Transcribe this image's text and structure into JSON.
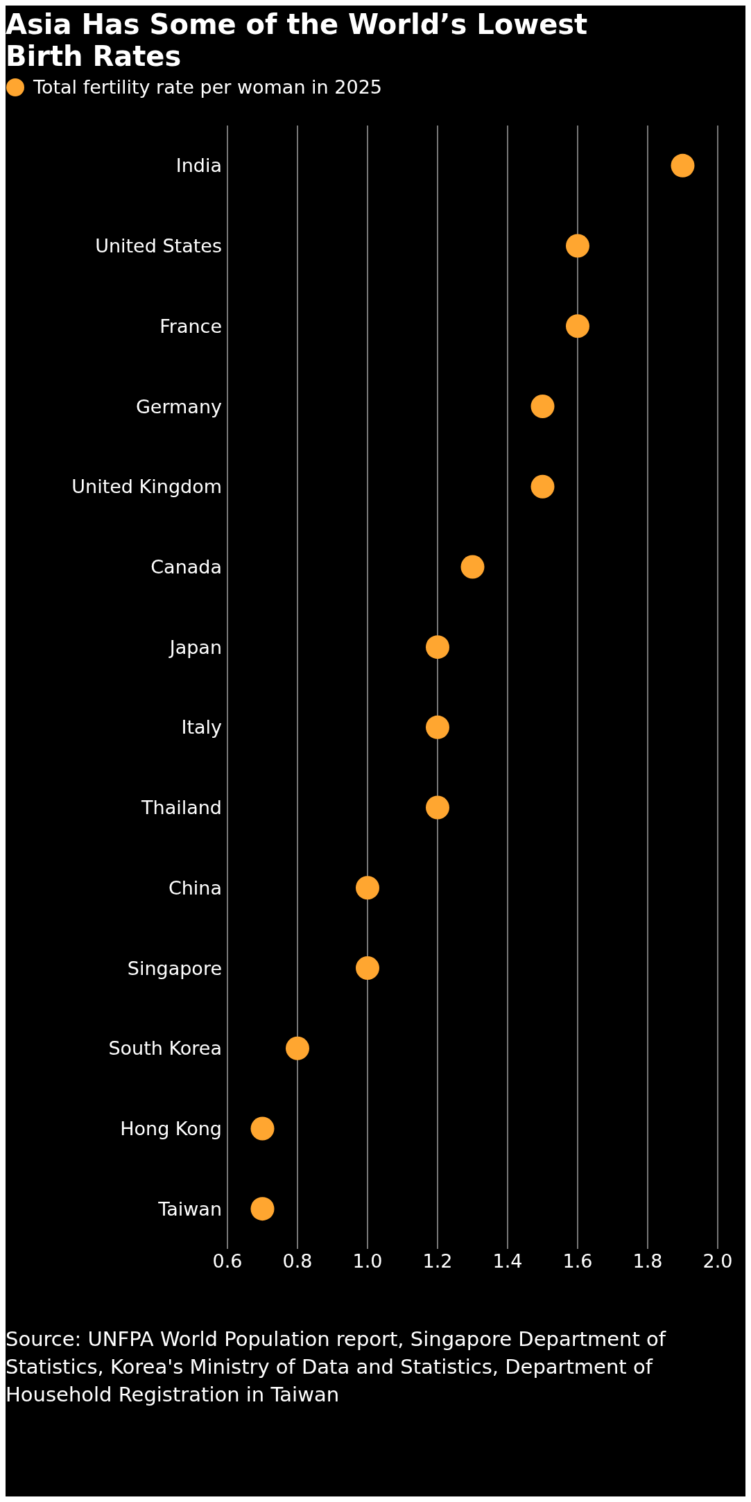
{
  "chart_data": {
    "type": "scatter",
    "orientation": "horizontal",
    "title": "Asia Has Some of the World’s Lowest Birth Rates",
    "categories": [
      "India",
      "United States",
      "France",
      "Germany",
      "United Kingdom",
      "Canada",
      "Japan",
      "Italy",
      "Thailand",
      "China",
      "Singapore",
      "South Korea",
      "Hong Kong",
      "Taiwan"
    ],
    "series": [
      {
        "name": "Total fertility rate per woman in 2025",
        "color": "#ffa630",
        "values": [
          1.9,
          1.6,
          1.6,
          1.5,
          1.5,
          1.3,
          1.2,
          1.2,
          1.2,
          1.0,
          1.0,
          0.8,
          0.7,
          0.7
        ]
      }
    ],
    "xlim": [
      0.6,
      2.0
    ],
    "xticks": [
      0.6,
      0.8,
      {
        "value": 1.0,
        "label": "1.0"
      },
      1.2,
      1.4,
      1.6,
      1.8,
      {
        "value": 2.0,
        "label": "2.0"
      }
    ],
    "grid": "x",
    "legend": "top left",
    "marker": "circle",
    "annotations": [
      "Source: UNFPA World Population report, Singapore Department of Statistics, Korea's Ministry of Data and Statistics, Department of Household Registration in Taiwan"
    ]
  }
}
